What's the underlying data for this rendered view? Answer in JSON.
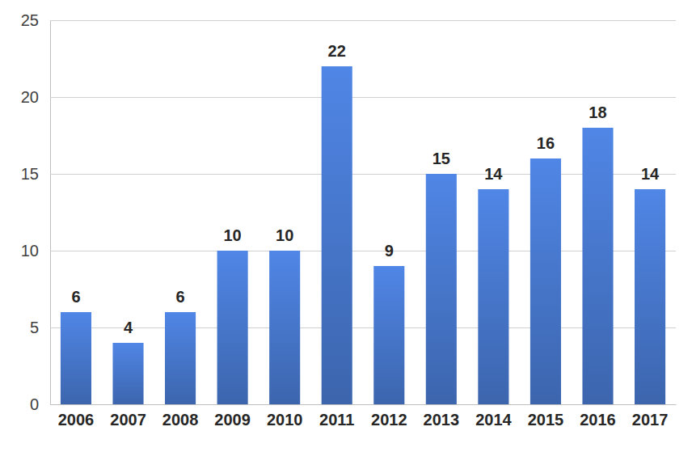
{
  "chart_data": {
    "type": "bar",
    "categories": [
      "2006",
      "2007",
      "2008",
      "2009",
      "2010",
      "2011",
      "2012",
      "2013",
      "2014",
      "2015",
      "2016",
      "2017"
    ],
    "values": [
      6,
      4,
      6,
      10,
      10,
      22,
      9,
      15,
      14,
      16,
      18,
      14
    ],
    "color": "#4472c4",
    "ylim": [
      0,
      25
    ],
    "yticks": [
      0,
      5,
      10,
      15,
      20,
      25
    ],
    "grid": true,
    "data_labels": true
  }
}
